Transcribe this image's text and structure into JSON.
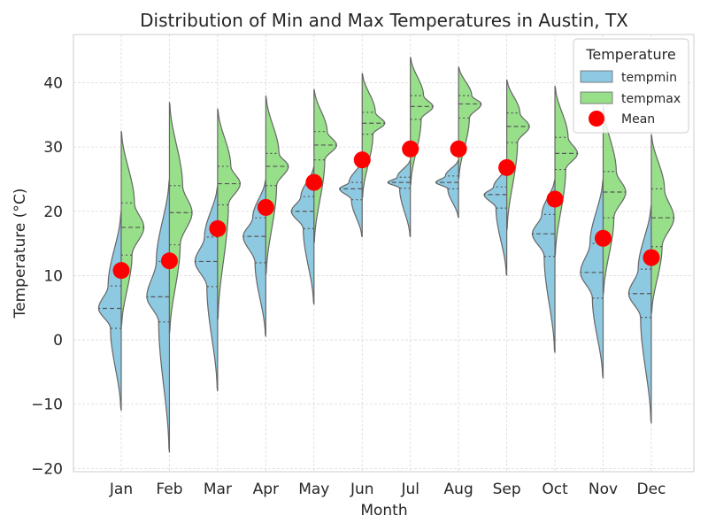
{
  "chart_data": {
    "type": "violin",
    "title": "Distribution of Min and Max Temperatures in Austin, TX",
    "xlabel": "Month",
    "ylabel": "Temperature (°C)",
    "categories": [
      "Jan",
      "Feb",
      "Mar",
      "Apr",
      "May",
      "Jun",
      "Jul",
      "Aug",
      "Sep",
      "Oct",
      "Nov",
      "Dec"
    ],
    "ylim": [
      -20.5,
      47.5
    ],
    "yticks": [
      -20,
      -10,
      0,
      10,
      20,
      30,
      40
    ],
    "ytick_labels": [
      "−20",
      "−10",
      "0",
      "10",
      "20",
      "30",
      "40"
    ],
    "grid": true,
    "legend_placement": "top-right",
    "legend_title": "Temperature",
    "colors": {
      "tempmin": "#8ec9e2",
      "tempmax": "#98df8a",
      "mean": "#ff0000",
      "outline": "#666666"
    },
    "series": [
      {
        "name": "tempmin",
        "side": "left",
        "stats": [
          {
            "min": -11,
            "q1": 1.8,
            "median": 4.9,
            "q3": 8.4,
            "max": 20
          },
          {
            "min": -17.5,
            "q1": 2.8,
            "median": 6.7,
            "q3": 12.2,
            "max": 25
          },
          {
            "min": -8,
            "q1": 8.3,
            "median": 12.2,
            "q3": 16.0,
            "max": 24
          },
          {
            "min": 0.5,
            "q1": 12.0,
            "median": 16.1,
            "q3": 19.0,
            "max": 25
          },
          {
            "min": 5.5,
            "q1": 17.3,
            "median": 20.0,
            "q3": 22.3,
            "max": 27
          },
          {
            "min": 16,
            "q1": 21.8,
            "median": 23.5,
            "q3": 24.5,
            "max": 28
          },
          {
            "min": 16,
            "q1": 23.6,
            "median": 24.5,
            "q3": 25.3,
            "max": 28
          },
          {
            "min": 19,
            "q1": 23.5,
            "median": 24.5,
            "q3": 25.5,
            "max": 28
          },
          {
            "min": 10,
            "q1": 20.5,
            "median": 22.6,
            "q3": 23.8,
            "max": 27
          },
          {
            "min": -2,
            "q1": 13.0,
            "median": 16.5,
            "q3": 19.5,
            "max": 25
          },
          {
            "min": -6,
            "q1": 6.5,
            "median": 10.5,
            "q3": 15.0,
            "max": 25
          },
          {
            "min": -13,
            "q1": 3.5,
            "median": 7.2,
            "q3": 11.0,
            "max": 21
          }
        ]
      },
      {
        "name": "tempmax",
        "side": "right",
        "stats": [
          {
            "min": 2,
            "q1": 13.2,
            "median": 17.5,
            "q3": 21.3,
            "max": 32.5
          },
          {
            "min": 1,
            "q1": 14.8,
            "median": 19.8,
            "q3": 24.0,
            "max": 37
          },
          {
            "min": 3,
            "q1": 21.0,
            "median": 24.3,
            "q3": 27.0,
            "max": 36
          },
          {
            "min": 10,
            "q1": 24.0,
            "median": 27.0,
            "q3": 29.0,
            "max": 38
          },
          {
            "min": 15,
            "q1": 28.0,
            "median": 30.3,
            "q3": 32.4,
            "max": 39
          },
          {
            "min": 22,
            "q1": 32.0,
            "median": 33.7,
            "q3": 35.4,
            "max": 41.5
          },
          {
            "min": 24,
            "q1": 34.3,
            "median": 36.3,
            "q3": 38.0,
            "max": 44
          },
          {
            "min": 25,
            "q1": 34.5,
            "median": 36.7,
            "q3": 38.0,
            "max": 42.5
          },
          {
            "min": 17,
            "q1": 30.7,
            "median": 33.2,
            "q3": 35.3,
            "max": 40.5
          },
          {
            "min": 13,
            "q1": 26.5,
            "median": 29.0,
            "q3": 31.5,
            "max": 39.5
          },
          {
            "min": 7,
            "q1": 19.0,
            "median": 23.0,
            "q3": 26.2,
            "max": 36.5
          },
          {
            "min": 4,
            "q1": 14.5,
            "median": 19.0,
            "q3": 23.5,
            "max": 32
          }
        ]
      },
      {
        "name": "Mean",
        "type": "scatter",
        "values": [
          10.8,
          12.3,
          17.3,
          20.6,
          24.5,
          28.0,
          29.7,
          29.7,
          26.8,
          21.9,
          15.8,
          12.8
        ]
      }
    ]
  }
}
